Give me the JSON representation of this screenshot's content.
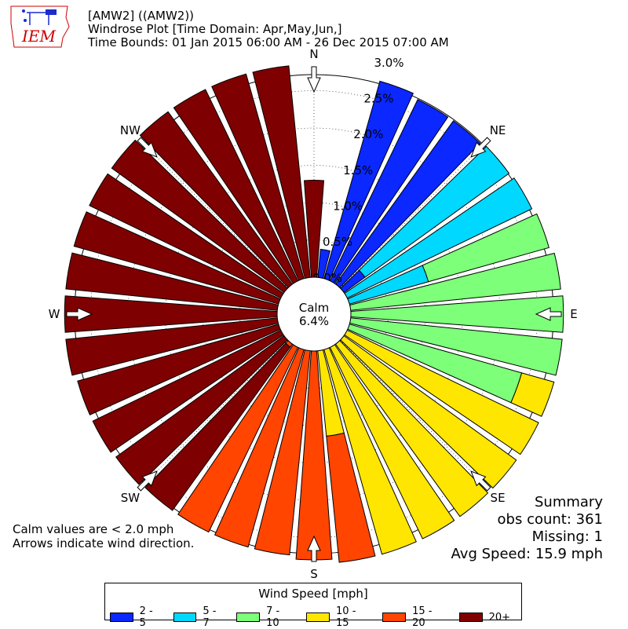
{
  "header": {
    "line1": "[AMW2] ((AMW2))",
    "line2": "Windrose Plot [Time Domain: Apr,May,Jun,]",
    "line3": "Time Bounds: 01 Jan 2015 06:00 AM - 26 Dec 2015 07:00 AM",
    "logo_text": "IEM"
  },
  "notes": {
    "line1": "Calm values are < 2.0 mph",
    "line2": "Arrows indicate wind direction."
  },
  "summary": {
    "title": "Summary",
    "obs_count": "obs count: 361",
    "missing": "Missing: 1",
    "avg_speed": "Avg Speed: 15.9 mph"
  },
  "legend": {
    "title": "Wind Speed [mph]",
    "items": [
      {
        "label": "2 - 5",
        "color": "#0a28ff"
      },
      {
        "label": "5 - 7",
        "color": "#00d8ff"
      },
      {
        "label": "7 - 10",
        "color": "#7dff7a"
      },
      {
        "label": "10 - 15",
        "color": "#ffe600"
      },
      {
        "label": "15 - 20",
        "color": "#ff4500"
      },
      {
        "label": "20+",
        "color": "#7f0000"
      }
    ]
  },
  "chart_data": {
    "type": "windrose",
    "calm": {
      "label": "Calm",
      "value": "6.4%"
    },
    "direction_labels": [
      "N",
      "NE",
      "E",
      "SE",
      "S",
      "SW",
      "W",
      "NW"
    ],
    "ring_labels": [
      "0.0%",
      "0.5%",
      "1.0%",
      "1.5%",
      "2.0%",
      "2.5%",
      "3.0%"
    ],
    "radial_max_percent": 3.0,
    "bins": [
      "2 - 5",
      "5 - 7",
      "7 - 10",
      "10 - 15",
      "15 - 20",
      "20+"
    ],
    "sectors": [
      {
        "direction_deg": 0,
        "total": 1.3,
        "color_bin": 5
      },
      {
        "direction_deg": 10,
        "total": 0.38,
        "color_bin": 0
      },
      {
        "direction_deg": 20,
        "total": 2.75,
        "color_bin": 0
      },
      {
        "direction_deg": 30,
        "total": 2.7,
        "color_bin": 0
      },
      {
        "direction_deg": 40,
        "total": 2.7,
        "color_bin": 0
      },
      {
        "direction_deg": 50,
        "total": 2.73,
        "color_bin": 0
      },
      {
        "direction_deg": 60,
        "total": 2.75,
        "color_bin": 1
      },
      {
        "direction_deg": 70,
        "total": 2.78,
        "color_bin": 1
      },
      {
        "direction_deg": 80,
        "total": 2.83,
        "color_bin": 2
      },
      {
        "direction_deg": 90,
        "total": 2.85,
        "color_bin": 2
      },
      {
        "direction_deg": 100,
        "total": 2.85,
        "color_bin": 2
      },
      {
        "direction_deg": 110,
        "total": 2.85,
        "color_bin": 2
      },
      {
        "direction_deg": 120,
        "total": 2.85,
        "color_bin": 3
      },
      {
        "direction_deg": 130,
        "total": 2.85,
        "color_bin": 3
      },
      {
        "direction_deg": 140,
        "total": 2.85,
        "color_bin": 3
      },
      {
        "direction_deg": 150,
        "total": 2.85,
        "color_bin": 3
      },
      {
        "direction_deg": 160,
        "total": 2.85,
        "color_bin": 3
      },
      {
        "direction_deg": 170,
        "total": 2.85,
        "color_bin": 3
      },
      {
        "direction_deg": 180,
        "total": 2.8,
        "color_bin": 4
      },
      {
        "direction_deg": 190,
        "total": 2.75,
        "color_bin": 4
      },
      {
        "direction_deg": 200,
        "total": 2.75,
        "color_bin": 4
      },
      {
        "direction_deg": 210,
        "total": 2.75,
        "color_bin": 4
      },
      {
        "direction_deg": 220,
        "total": 2.75,
        "color_bin": 4
      },
      {
        "direction_deg": 230,
        "total": 2.78,
        "color_bin": 5
      },
      {
        "direction_deg": 240,
        "total": 2.8,
        "color_bin": 5
      },
      {
        "direction_deg": 250,
        "total": 2.8,
        "color_bin": 5
      },
      {
        "direction_deg": 260,
        "total": 2.85,
        "color_bin": 5
      },
      {
        "direction_deg": 270,
        "total": 2.85,
        "color_bin": 5
      },
      {
        "direction_deg": 280,
        "total": 2.85,
        "color_bin": 5
      },
      {
        "direction_deg": 290,
        "total": 2.85,
        "color_bin": 5
      },
      {
        "direction_deg": 300,
        "total": 2.85,
        "color_bin": 5
      },
      {
        "direction_deg": 310,
        "total": 2.85,
        "color_bin": 5
      },
      {
        "direction_deg": 320,
        "total": 2.85,
        "color_bin": 5
      },
      {
        "direction_deg": 330,
        "total": 2.85,
        "color_bin": 5
      },
      {
        "direction_deg": 340,
        "total": 2.85,
        "color_bin": 5
      },
      {
        "direction_deg": 350,
        "total": 2.85,
        "color_bin": 5
      }
    ],
    "segment_splits": [
      {
        "direction_deg": 50,
        "lower_bin": 0,
        "upper_bin": 1,
        "split_at": 0.35
      },
      {
        "direction_deg": 70,
        "lower_bin": 1,
        "upper_bin": 2,
        "split_at": 1.1
      },
      {
        "direction_deg": 110,
        "lower_bin": 2,
        "upper_bin": 3,
        "split_at": 2.4
      },
      {
        "direction_deg": 170,
        "lower_bin": 3,
        "upper_bin": 4,
        "split_at": 1.15
      },
      {
        "direction_deg": 220,
        "lower_bin": 4,
        "upper_bin": 5,
        "split_at": 0.05
      }
    ]
  }
}
